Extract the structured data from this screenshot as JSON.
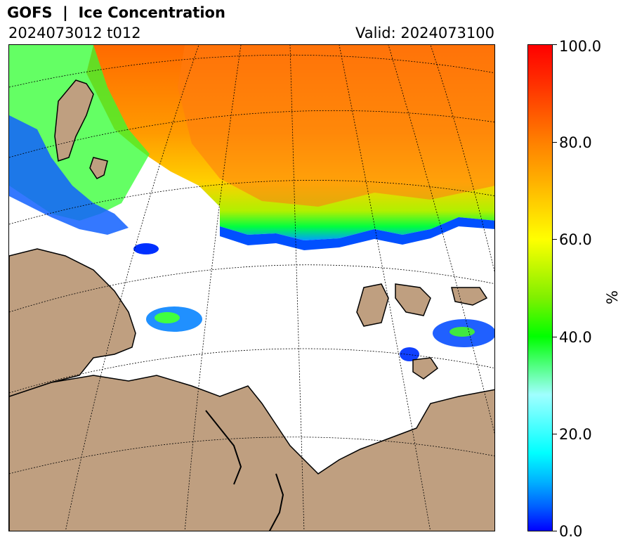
{
  "header": {
    "title": "GOFS  |  Ice Concentration",
    "run": "2024073012 t012",
    "valid": "Valid: 2024073100"
  },
  "colorbar": {
    "unit": "%",
    "ticks": [
      "100.0",
      "80.0",
      "60.0",
      "40.0",
      "20.0",
      "0.0"
    ],
    "range": [
      0,
      100
    ],
    "colors": {
      "low": "#0000ff",
      "mid": "#00ff00",
      "high": "#ff0000",
      "land": "#bf9f80"
    }
  }
}
